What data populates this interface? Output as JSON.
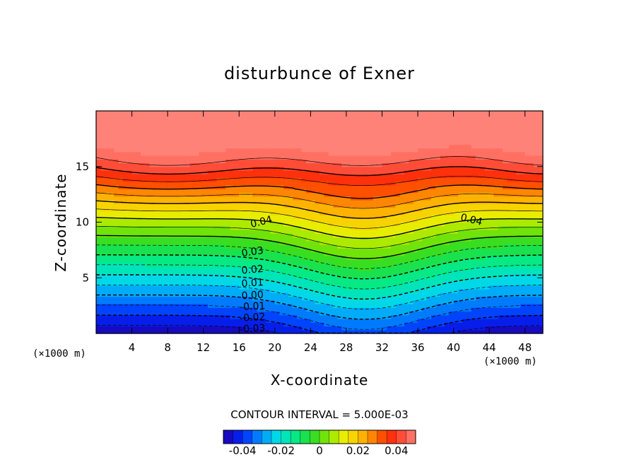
{
  "chart_data": {
    "type": "heatmap",
    "subtype": "filled-contour",
    "title": "disturbunce of Exner",
    "xlabel": "X-coordinate",
    "ylabel": "Z-coordinate",
    "x_unit": "(×1000 m)",
    "y_unit": "(×1000 m)",
    "xlim": [
      0,
      50
    ],
    "ylim": [
      0,
      20
    ],
    "x_ticks": [
      4,
      8,
      12,
      16,
      20,
      24,
      28,
      32,
      36,
      40,
      44,
      48
    ],
    "y_ticks": [
      5,
      10,
      15
    ],
    "contour_interval_text": "CONTOUR INTERVAL = 5.000E-03",
    "contour_interval": 0.005,
    "value_range": [
      -0.05,
      0.05
    ],
    "contour_labels": [
      {
        "text": "0.04",
        "x": 18.5,
        "z": 10.0,
        "angle": -14
      },
      {
        "text": "0.04",
        "x": 42.0,
        "z": 10.2,
        "angle": 14
      },
      {
        "text": "0.03",
        "x": 17.5,
        "z": 7.3,
        "angle": -8
      },
      {
        "text": "0.02",
        "x": 17.5,
        "z": 5.7,
        "angle": -5
      },
      {
        "text": "0.01",
        "x": 17.5,
        "z": 4.5,
        "angle": -4
      },
      {
        "text": "0.00",
        "x": 17.5,
        "z": 3.4,
        "angle": -3
      },
      {
        "text": "-0.01",
        "x": 17.5,
        "z": 2.4,
        "angle": -3
      },
      {
        "text": "-0.02",
        "x": 17.5,
        "z": 1.4,
        "angle": -3
      },
      {
        "text": "-0.03",
        "x": 17.5,
        "z": 0.4,
        "angle": -3
      }
    ],
    "colorbar": {
      "range": [
        -0.05,
        0.05
      ],
      "tick_values": [
        -0.04,
        -0.02,
        0,
        0.02,
        0.04
      ],
      "tick_labels": [
        "-0.04",
        "-0.02",
        "0",
        "0.02",
        "0.04"
      ]
    }
  }
}
